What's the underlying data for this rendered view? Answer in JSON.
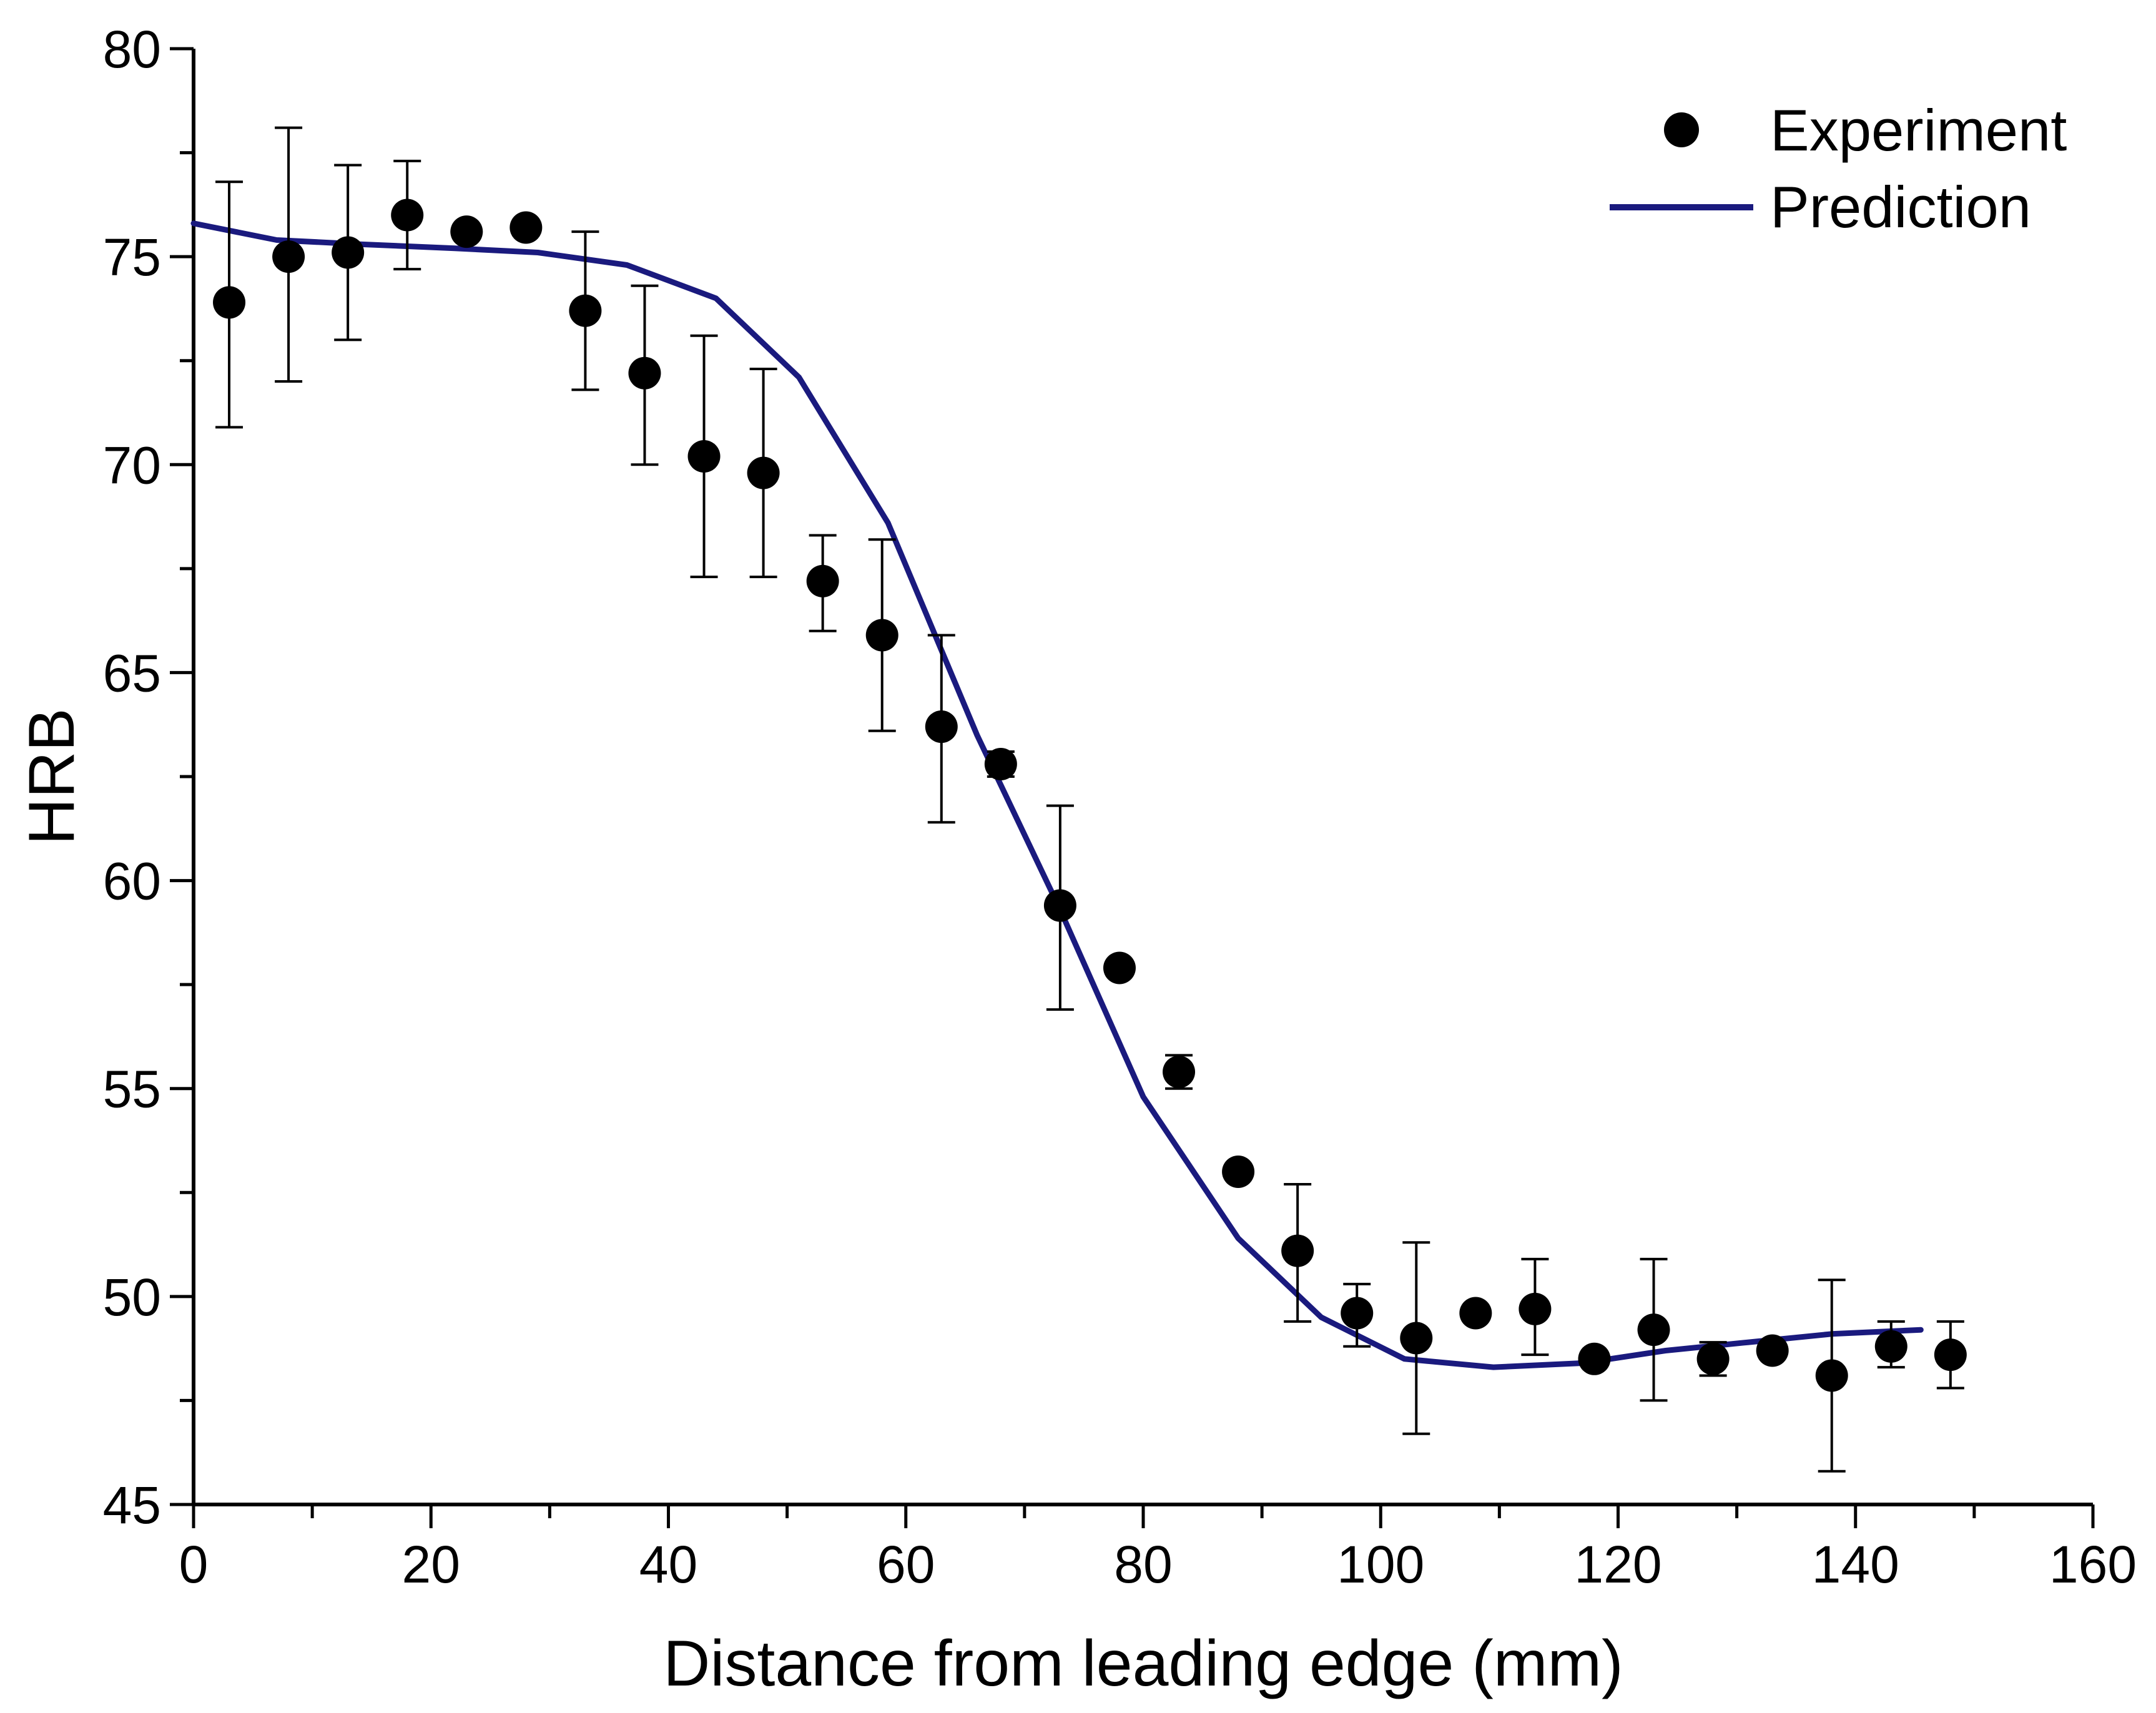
{
  "chart_data": {
    "type": "scatter",
    "title": "",
    "xlabel": "Distance from leading edge (mm)",
    "ylabel": "HRB",
    "xlim": [
      0,
      160
    ],
    "ylim": [
      45,
      80
    ],
    "x_major_ticks": [
      0,
      20,
      40,
      60,
      80,
      100,
      120,
      140,
      160
    ],
    "y_major_ticks": [
      45,
      50,
      55,
      60,
      65,
      70,
      75,
      80
    ],
    "x_tick_labels": [
      "0",
      "20",
      "40",
      "60",
      "80",
      "100",
      "120",
      "140",
      "160"
    ],
    "y_tick_labels": [
      "45",
      "50",
      "55",
      "60",
      "65",
      "70",
      "75",
      "80"
    ],
    "grid": false,
    "legend": "top-right",
    "series": [
      {
        "name": "Experiment",
        "kind": "scatter-errorbar",
        "color": "#000000",
        "points": [
          {
            "x": 3,
            "y": 73.9,
            "err_low": 70.9,
            "err_high": 76.8
          },
          {
            "x": 8,
            "y": 75.0,
            "err_low": 72.0,
            "err_high": 78.1
          },
          {
            "x": 13,
            "y": 75.1,
            "err_low": 73.0,
            "err_high": 77.2
          },
          {
            "x": 18,
            "y": 76.0,
            "err_low": 74.7,
            "err_high": 77.3
          },
          {
            "x": 23,
            "y": 75.6
          },
          {
            "x": 28,
            "y": 75.7
          },
          {
            "x": 33,
            "y": 73.7,
            "err_low": 71.8,
            "err_high": 75.6
          },
          {
            "x": 38,
            "y": 72.2,
            "err_low": 70.0,
            "err_high": 74.3
          },
          {
            "x": 43,
            "y": 70.2,
            "err_low": 67.3,
            "err_high": 73.1
          },
          {
            "x": 48,
            "y": 69.8,
            "err_low": 67.3,
            "err_high": 72.3
          },
          {
            "x": 53,
            "y": 67.2,
            "err_low": 66.0,
            "err_high": 68.3
          },
          {
            "x": 58,
            "y": 65.9,
            "err_low": 63.6,
            "err_high": 68.2
          },
          {
            "x": 63,
            "y": 63.7,
            "err_low": 61.4,
            "err_high": 65.9
          },
          {
            "x": 68,
            "y": 62.8,
            "err_low": 62.5,
            "err_high": 63.1
          },
          {
            "x": 73,
            "y": 59.4,
            "err_low": 56.9,
            "err_high": 61.8
          },
          {
            "x": 78,
            "y": 57.9
          },
          {
            "x": 83,
            "y": 55.4,
            "err_low": 55.0,
            "err_high": 55.8
          },
          {
            "x": 88,
            "y": 53.0
          },
          {
            "x": 93,
            "y": 51.1,
            "err_low": 49.4,
            "err_high": 52.7
          },
          {
            "x": 98,
            "y": 49.6,
            "err_low": 48.8,
            "err_high": 50.3
          },
          {
            "x": 103,
            "y": 49.0,
            "err_low": 46.7,
            "err_high": 51.3
          },
          {
            "x": 108,
            "y": 49.6
          },
          {
            "x": 113,
            "y": 49.7,
            "err_low": 48.6,
            "err_high": 50.9
          },
          {
            "x": 118,
            "y": 48.5
          },
          {
            "x": 123,
            "y": 49.2,
            "err_low": 47.5,
            "err_high": 50.9
          },
          {
            "x": 128,
            "y": 48.5,
            "err_low": 48.1,
            "err_high": 48.9
          },
          {
            "x": 133,
            "y": 48.7
          },
          {
            "x": 138,
            "y": 48.1,
            "err_low": 45.8,
            "err_high": 50.4
          },
          {
            "x": 143,
            "y": 48.8,
            "err_low": 48.3,
            "err_high": 49.4
          },
          {
            "x": 148,
            "y": 48.6,
            "err_low": 47.8,
            "err_high": 49.4
          }
        ]
      },
      {
        "name": "Prediction",
        "kind": "line",
        "color": "#1a1a7e",
        "x": [
          0,
          7,
          14,
          22,
          29,
          36.5,
          44,
          51,
          58.5,
          66,
          73,
          80,
          88,
          95,
          102,
          109.5,
          117,
          124,
          131,
          138,
          145.5
        ],
        "y": [
          75.8,
          75.4,
          75.3,
          75.2,
          75.1,
          74.8,
          74.0,
          72.1,
          68.6,
          63.5,
          59.3,
          54.8,
          51.4,
          49.5,
          48.5,
          48.3,
          48.4,
          48.7,
          48.9,
          49.1,
          49.2
        ]
      }
    ]
  }
}
